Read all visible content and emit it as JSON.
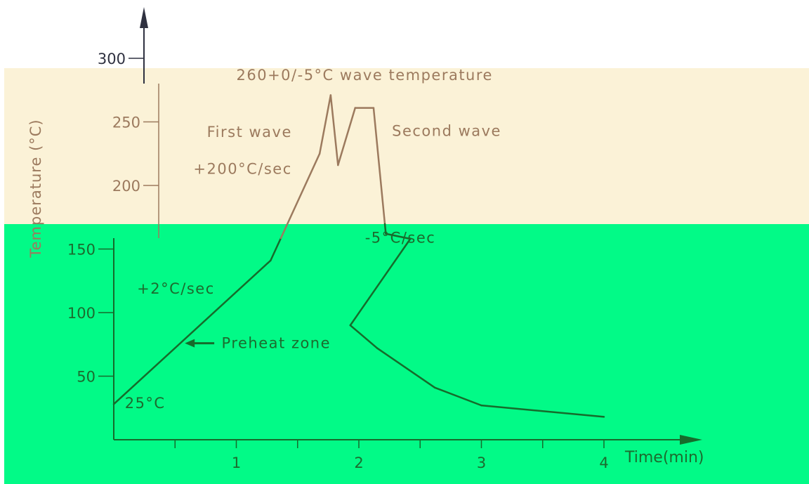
{
  "chart_data": {
    "type": "line",
    "title": "",
    "xlabel": "Time(min)",
    "ylabel": "Temperature (°C)",
    "xlim": [
      0,
      4.9
    ],
    "ylim": [
      0,
      320
    ],
    "x_ticks_major": [
      1,
      2,
      3,
      4
    ],
    "x_ticks_minor": [
      0.5,
      1.5,
      2.5,
      3.5
    ],
    "y_ticks": [
      50,
      100,
      150,
      200,
      250,
      300
    ],
    "grid": false,
    "series": [
      {
        "x": [
          0,
          1.28,
          1.68,
          1.77,
          1.83,
          1.97,
          2.12,
          2.22,
          2.42,
          1.93,
          2.15,
          2.62,
          3.0,
          4.0
        ],
        "y": [
          28,
          141,
          225,
          271,
          216,
          261,
          261,
          162,
          158,
          90,
          72,
          41,
          27,
          18
        ]
      }
    ],
    "annotations": [
      {
        "text": "260+0/-5°C wave temperature",
        "x": 1.0,
        "y": 283
      },
      {
        "text": "First wave",
        "x": 0.76,
        "y": 238
      },
      {
        "text": "Second wave",
        "x": 2.27,
        "y": 239
      },
      {
        "text": "+200°C/sec",
        "x": 0.65,
        "y": 209
      },
      {
        "text": "-5°C/sec",
        "x": 2.05,
        "y": 155
      },
      {
        "text": "+2°C/sec",
        "x": 0.19,
        "y": 115
      },
      {
        "text": "Preheat zone",
        "x": 0.88,
        "y": 72
      },
      {
        "text": "25°C",
        "x": 0.09,
        "y": 25
      }
    ],
    "background_bands": [
      {
        "color": "#fbf2d7"
      },
      {
        "color": "#02fa87"
      }
    ],
    "colors": {
      "line_on_light": "#9c7a5e",
      "text_on_light": "#9c7a5e",
      "line_on_green": "#166b2b",
      "text_on_green": "#1c6b2e",
      "axis_top": "#2f3140"
    }
  }
}
